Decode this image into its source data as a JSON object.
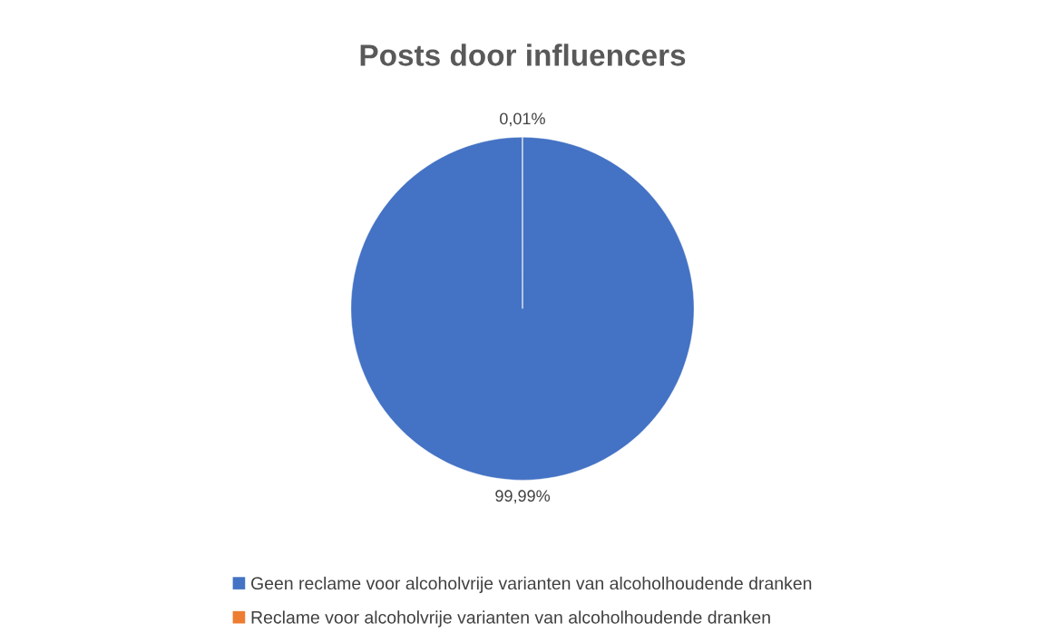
{
  "chart_data": {
    "type": "pie",
    "title": "Posts door influencers",
    "categories": [
      "Geen reclame voor alcoholvrije varianten van alcoholhoudende dranken",
      "Reclame voor alcoholvrije varianten van alcoholhoudende dranken"
    ],
    "values": [
      99.99,
      0.01
    ],
    "value_labels": [
      "99,99%",
      "0,01%"
    ],
    "colors": [
      "#4472c4",
      "#ed7d31"
    ],
    "legend": "bottom"
  }
}
